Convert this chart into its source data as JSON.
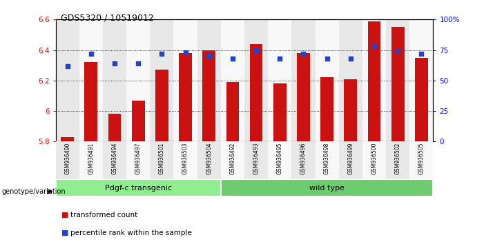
{
  "title": "GDS5320 / 10519012",
  "samples": [
    "GSM936490",
    "GSM936491",
    "GSM936494",
    "GSM936497",
    "GSM936501",
    "GSM936503",
    "GSM936504",
    "GSM936492",
    "GSM936493",
    "GSM936495",
    "GSM936496",
    "GSM936498",
    "GSM936499",
    "GSM936500",
    "GSM936502",
    "GSM936505"
  ],
  "transformed_count": [
    5.83,
    6.32,
    5.98,
    6.07,
    6.27,
    6.38,
    6.4,
    6.19,
    6.44,
    6.18,
    6.38,
    6.22,
    6.21,
    6.59,
    6.55,
    6.35
  ],
  "percentile_pct": [
    62,
    72,
    64,
    64,
    72,
    73,
    70,
    68,
    75,
    68,
    72,
    68,
    68,
    78,
    74,
    72
  ],
  "groups": [
    {
      "label": "Pdgf-c transgenic",
      "start": 0,
      "end": 7,
      "color": "#90ee90"
    },
    {
      "label": "wild type",
      "start": 7,
      "end": 16,
      "color": "#6dcc6d"
    }
  ],
  "ymin": 5.8,
  "ymax": 6.6,
  "bar_color": "#cc1111",
  "dot_color": "#2244cc",
  "bar_width": 0.55,
  "col_bg_even": "#e8e8e8",
  "col_bg_odd": "#f8f8f8",
  "grid_color": "#000000",
  "legend_items": [
    {
      "label": "transformed count",
      "color": "#cc1111"
    },
    {
      "label": "percentile rank within the sample",
      "color": "#2244cc"
    }
  ]
}
